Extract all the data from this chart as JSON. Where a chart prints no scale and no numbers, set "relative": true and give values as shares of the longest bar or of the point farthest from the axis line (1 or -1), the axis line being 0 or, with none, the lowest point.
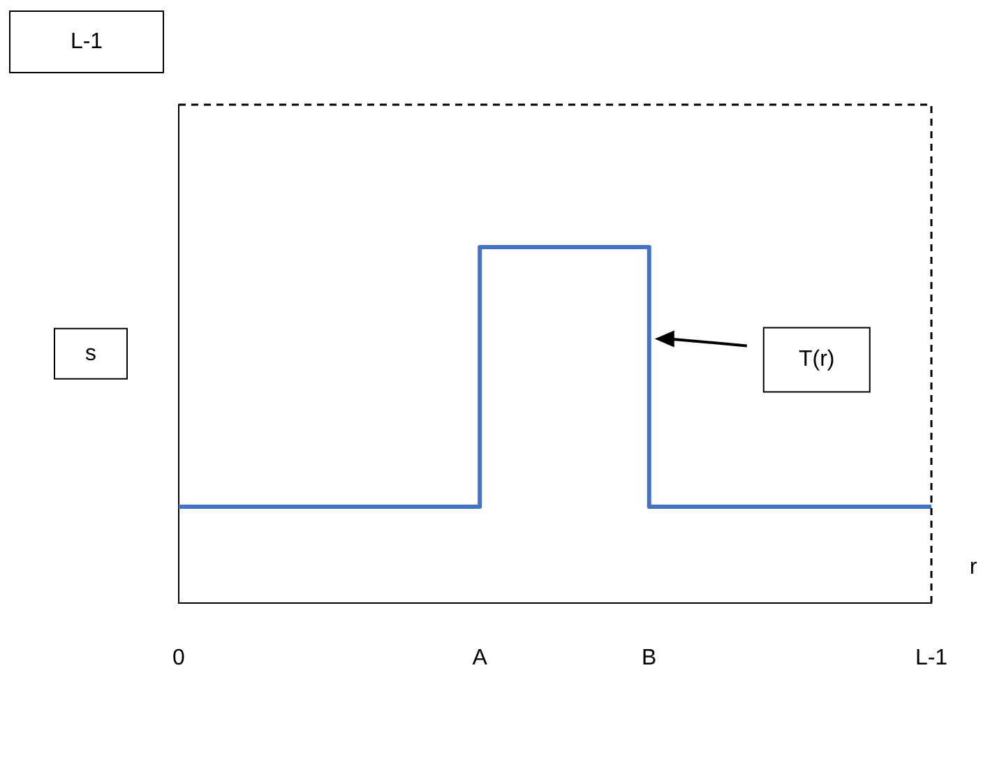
{
  "chart_data": {
    "type": "step",
    "relative": true,
    "xlabel": "r",
    "ylabel": "s",
    "categories": [
      "0",
      null,
      null,
      null,
      null,
      null,
      null,
      null,
      null,
      null,
      null,
      null,
      null,
      null,
      null,
      null,
      "A",
      null,
      null,
      null,
      null,
      null,
      null,
      null,
      null,
      "B",
      null,
      null,
      null,
      null,
      null,
      null,
      null,
      null,
      null,
      null,
      null,
      null,
      null,
      null,
      "L-1"
    ],
    "series": [
      {
        "color": "#4472c4",
        "values": [
          0.27,
          0.27,
          0.27,
          0.27,
          0.27,
          0.27,
          0.27,
          0.27,
          0.27,
          0.27,
          0.27,
          0.27,
          0.27,
          0.27,
          0.27,
          0.27,
          1,
          1,
          1,
          1,
          1,
          1,
          1,
          1,
          1,
          0.27,
          0.27,
          0.27,
          0.27,
          0.27,
          0.27,
          0.27,
          0.27,
          0.27,
          0.27,
          0.27,
          0.27,
          0.27,
          0.27,
          0.27,
          0.27
        ]
      }
    ],
    "annotations": [
      "L-1",
      "T(r)"
    ],
    "legend": false,
    "marker": "none",
    "line_style": "solid"
  }
}
